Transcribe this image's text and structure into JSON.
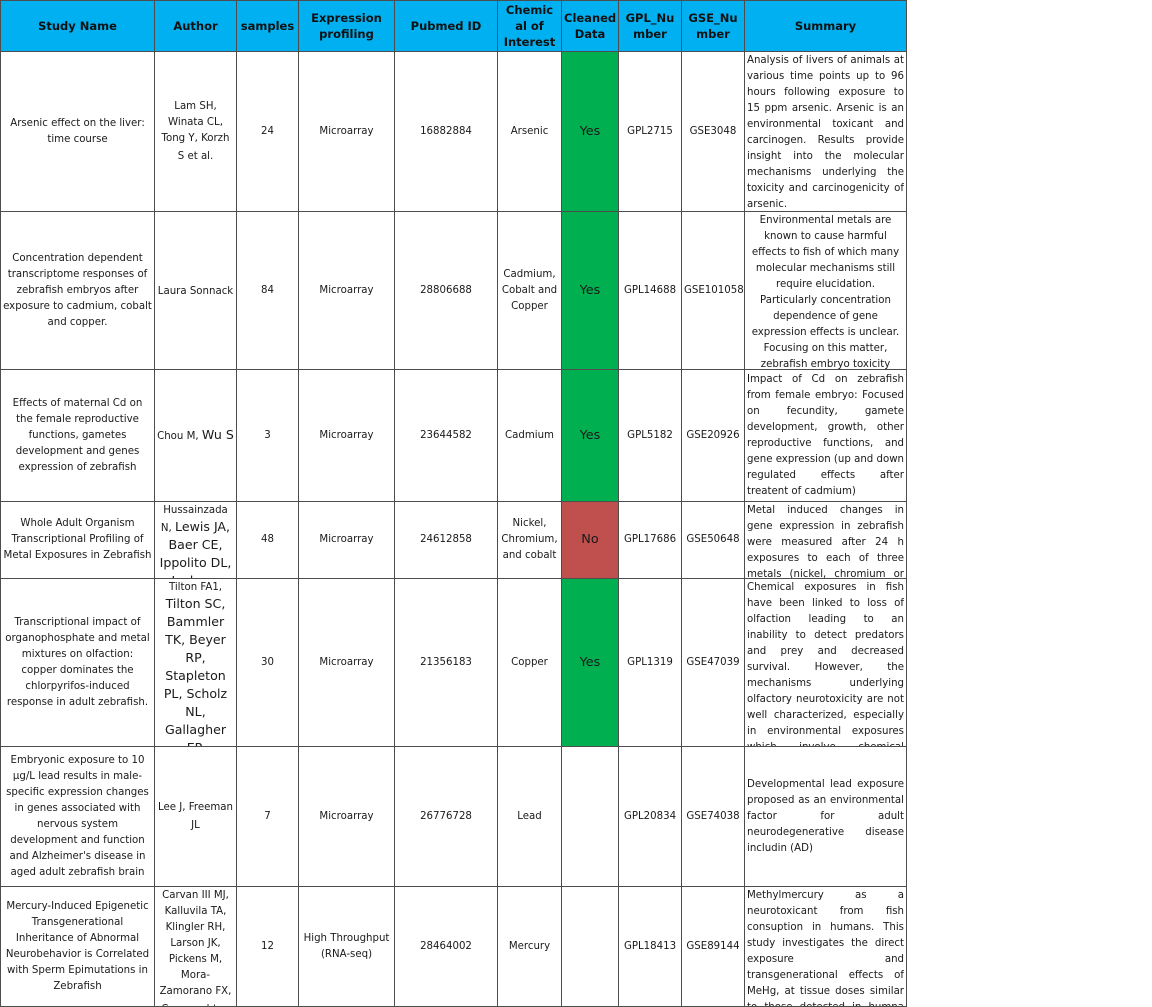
{
  "columns": [
    "Study Name",
    "Author",
    "samples",
    "Expression profiling",
    "Pubmed ID",
    "Chemical of Interest",
    "Cleaned Data",
    "GPL_Number",
    "GSE_Number",
    "Summary"
  ],
  "colors": {
    "header": "#00b0f0",
    "yes": "#00b050",
    "no": "#c0504d"
  },
  "rows": [
    {
      "study": "Arsenic effect on the liver: time course",
      "author_small": "Lam SH, Winata CL, Tong Y, Korzh S et al.",
      "author_big": "",
      "samples": "24",
      "profiling": "Microarray",
      "pubmed": "16882884",
      "chemical": "Arsenic",
      "cleaned": "Yes",
      "gpl": "GPL2715",
      "gse": "GSE3048",
      "summary": "Analysis of livers of animals at various time points up to 96 hours following exposure to 15 ppm arsenic. Arsenic is an environmental toxicant and carcinogen. Results provide insight into the molecular mechanisms underlying the toxicity and carcinogenicity of arsenic."
    },
    {
      "study": "Concentration dependent transcriptome responses of zebrafish embryos after exposure to cadmium, cobalt and copper.",
      "author_small": "Laura Sonnack",
      "author_big": "",
      "samples": "84",
      "profiling": "Microarray",
      "pubmed": "28806688",
      "chemical": "Cadmium, Cobalt and Copper",
      "cleaned": "Yes",
      "gpl": "GPL14688",
      "gse": "GSE101058",
      "summary": "Environmental metals are known to cause harmful effects to fish of which many molecular mechanisms still require elucidation. Particularly concentration dependence of gene expression effects is unclear. Focusing on this matter, zebrafish embryo toxicity tests were used in combination with"
    },
    {
      "study": "Effects of maternal Cd on the female reproductive functions, gametes development and genes expression of zebrafish",
      "author_small": "Chou M,",
      "author_big": "Wu S",
      "samples": "3",
      "profiling": "Microarray",
      "pubmed": "23644582",
      "chemical": "Cadmium",
      "cleaned": "Yes",
      "gpl": "GPL5182",
      "gse": "GSE20926",
      "summary": "Impact of Cd on zebrafish from female embryo: Focused on fecundity, gamete development, growth, other reproductive functions, and gene expression (up and down regulated effects after treatent of cadmium)"
    },
    {
      "study": "Whole Adult Organism Transcriptional Profiling of Metal Exposures in Zebrafish",
      "author_small": "Hussainzada N,",
      "author_big": "Lewis JA, Baer CE, Ippolito DL, Jackson",
      "samples": "48",
      "profiling": "Microarray",
      "pubmed": "24612858",
      "chemical": "Nickel, Chromium, and cobalt",
      "cleaned": "No",
      "gpl": "GPL17686",
      "gse": "GSE50648",
      "summary": "Metal induced changes in gene expression in zebrafish were measured after 24 h exposures to each of three metals (nickel, chromium or cobalt). A total of"
    },
    {
      "study": "Transcriptional impact of organophosphate and metal mixtures on olfaction: copper dominates the chlorpyrifos-induced response in adult zebrafish.",
      "author_small": "Tilton FA1,",
      "author_big": "Tilton SC, Bammler TK, Beyer RP, Stapleton PL, Scholz NL, Gallagher EP.",
      "samples": "30",
      "profiling": "Microarray",
      "pubmed": "21356183",
      "chemical": "Copper",
      "cleaned": "Yes",
      "gpl": "GPL1319",
      "gse": "GSE47039",
      "summary": "Chemical exposures in fish have been linked to loss of olfaction leading to an inability to detect predators and prey and decreased survival. However, the mechanisms underlying olfactory neurotoxicity are not well characterized, especially in environmental exposures which involve chemical mixtures. We used zebrafish to characterize"
    },
    {
      "study": "Embryonic exposure to 10 µg/L lead results in male-specific expression changes in genes associated with nervous system development and function and Alzheimer's disease in aged adult zebrafish brain",
      "author_small": "Lee J, Freeman JL",
      "author_big": "",
      "samples": "7",
      "profiling": "Microarray",
      "pubmed": "26776728",
      "chemical": "Lead",
      "cleaned": "",
      "gpl": "GPL20834",
      "gse": "GSE74038",
      "summary": "Developmental lead exposure proposed as an environmental factor for adult neurodegenerative disease includin (AD)"
    },
    {
      "study": "Mercury-Induced Epigenetic Transgenerational Inheritance of Abnormal Neurobehavior is Correlated with Sperm Epimutations in Zebrafish",
      "author_small": "Carvan III MJ, Kalluvila TA, Klingler RH, Larson JK, Pickens M, Mora-Zamorano FX, Connaughton",
      "author_big": "",
      "samples": "12",
      "profiling": "High Throughput (RNA-seq)",
      "pubmed": "28464002",
      "chemical": "Mercury",
      "cleaned": "",
      "gpl": "GPL18413",
      "gse": "GSE89144",
      "summary": "Methylmercury as a neurotoxicant from fish consuption in humans. This study investigates the direct exposure and transgenerational effects of MeHg, at tissue doses similar to those detected in humna populations"
    }
  ]
}
